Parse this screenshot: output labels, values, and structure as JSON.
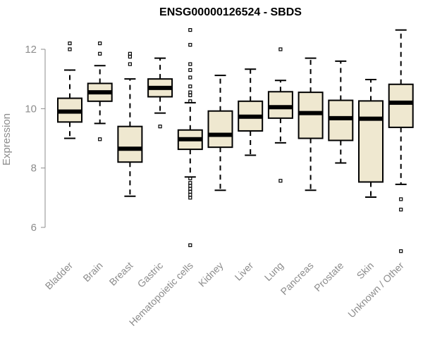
{
  "chart_data": {
    "type": "boxplot",
    "title": "ENSG00000126524 - SBDS",
    "ylabel": "Expression",
    "xlabel": "",
    "ylim": [
      5,
      12.8
    ],
    "yticks": [
      6,
      8,
      10,
      12
    ],
    "colors": {
      "box_fill": "#efe8d0",
      "stroke": "#000000",
      "axis": "#8c8c8c"
    },
    "categories": [
      "Bladder",
      "Brain",
      "Breast",
      "Gastric",
      "Hematopoietic cells",
      "Kidney",
      "Liver",
      "Lung",
      "Pancreas",
      "Prostate",
      "Skin",
      "Unknown / Other"
    ],
    "boxes": [
      {
        "name": "Bladder",
        "whisker_low": 9.0,
        "q1": 9.55,
        "median": 9.9,
        "q3": 10.35,
        "whisker_high": 11.3,
        "outliers": [
          12.0,
          12.2
        ]
      },
      {
        "name": "Brain",
        "whisker_low": 9.5,
        "q1": 10.25,
        "median": 10.55,
        "q3": 10.85,
        "whisker_high": 11.45,
        "outliers": [
          8.97,
          11.85,
          12.2
        ]
      },
      {
        "name": "Breast",
        "whisker_low": 7.05,
        "q1": 8.2,
        "median": 8.65,
        "q3": 9.4,
        "whisker_high": 11.0,
        "outliers": [
          11.5,
          11.75,
          11.85
        ]
      },
      {
        "name": "Gastric",
        "whisker_low": 9.85,
        "q1": 10.4,
        "median": 10.7,
        "q3": 11.0,
        "whisker_high": 11.7,
        "outliers": [
          9.4
        ]
      },
      {
        "name": "Hematopoietic cells",
        "whisker_low": 7.7,
        "q1": 8.63,
        "median": 8.97,
        "q3": 9.28,
        "whisker_high": 10.2,
        "outliers": [
          12.65,
          12.15,
          11.5,
          11.3,
          11.05,
          10.75,
          10.55,
          10.45,
          10.25,
          7.65,
          7.5,
          7.4,
          7.3,
          7.2,
          7.1,
          7.0,
          5.4
        ]
      },
      {
        "name": "Kidney",
        "whisker_low": 7.25,
        "q1": 8.7,
        "median": 9.12,
        "q3": 9.92,
        "whisker_high": 11.12,
        "outliers": []
      },
      {
        "name": "Liver",
        "whisker_low": 8.43,
        "q1": 9.25,
        "median": 9.73,
        "q3": 10.25,
        "whisker_high": 11.33,
        "outliers": []
      },
      {
        "name": "Lung",
        "whisker_low": 8.85,
        "q1": 9.68,
        "median": 10.05,
        "q3": 10.57,
        "whisker_high": 10.95,
        "outliers": [
          12.0,
          7.57
        ]
      },
      {
        "name": "Pancreas",
        "whisker_low": 7.25,
        "q1": 9.0,
        "median": 9.85,
        "q3": 10.55,
        "whisker_high": 11.7,
        "outliers": []
      },
      {
        "name": "Prostate",
        "whisker_low": 8.17,
        "q1": 8.93,
        "median": 9.68,
        "q3": 10.28,
        "whisker_high": 11.6,
        "outliers": []
      },
      {
        "name": "Skin",
        "whisker_low": 7.02,
        "q1": 7.53,
        "median": 9.66,
        "q3": 10.26,
        "whisker_high": 10.98,
        "outliers": []
      },
      {
        "name": "Unknown / Other",
        "whisker_low": 7.45,
        "q1": 9.37,
        "median": 10.2,
        "q3": 10.82,
        "whisker_high": 12.65,
        "outliers": [
          6.95,
          6.6,
          5.2
        ]
      }
    ]
  }
}
